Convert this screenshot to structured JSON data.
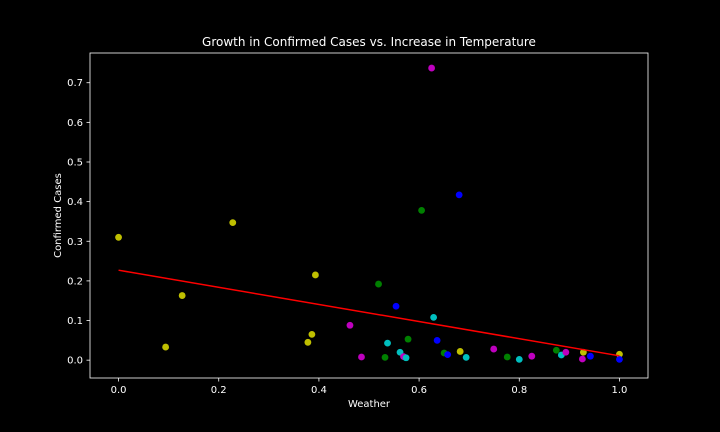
{
  "chart_data": {
    "type": "scatter",
    "title": "Growth in Confirmed Cases vs. Increase in Temperature",
    "xlabel": "Weather",
    "ylabel": "Confirmed Cases",
    "xlim": [
      -0.057,
      1.057
    ],
    "ylim": [
      -0.045,
      0.775
    ],
    "xticks": [
      0.0,
      0.2,
      0.4,
      0.6,
      0.8,
      1.0
    ],
    "xtick_labels": [
      "0.0",
      "0.2",
      "0.4",
      "0.6",
      "0.8",
      "1.0"
    ],
    "yticks": [
      0.0,
      0.1,
      0.2,
      0.3,
      0.4,
      0.5,
      0.6,
      0.7
    ],
    "ytick_labels": [
      "0.0",
      "0.1",
      "0.2",
      "0.3",
      "0.4",
      "0.5",
      "0.6",
      "0.7"
    ],
    "grid": false,
    "colors": {
      "background": "#000000",
      "foreground": "#ffffff",
      "fit_line": "#ff0000"
    },
    "points": [
      {
        "x": 0.0,
        "y": 0.31,
        "color": "#bfbf00"
      },
      {
        "x": 0.094,
        "y": 0.033,
        "color": "#bfbf00"
      },
      {
        "x": 0.127,
        "y": 0.163,
        "color": "#bfbf00"
      },
      {
        "x": 0.228,
        "y": 0.347,
        "color": "#bfbf00"
      },
      {
        "x": 0.378,
        "y": 0.045,
        "color": "#bfbf00"
      },
      {
        "x": 0.386,
        "y": 0.065,
        "color": "#bfbf00"
      },
      {
        "x": 0.393,
        "y": 0.215,
        "color": "#bfbf00"
      },
      {
        "x": 0.462,
        "y": 0.088,
        "color": "#bf00bf"
      },
      {
        "x": 0.485,
        "y": 0.008,
        "color": "#bf00bf"
      },
      {
        "x": 0.519,
        "y": 0.192,
        "color": "#008000"
      },
      {
        "x": 0.532,
        "y": 0.007,
        "color": "#008000"
      },
      {
        "x": 0.537,
        "y": 0.043,
        "color": "#00bfbf"
      },
      {
        "x": 0.554,
        "y": 0.136,
        "color": "#0000ff"
      },
      {
        "x": 0.562,
        "y": 0.02,
        "color": "#00bfbf"
      },
      {
        "x": 0.569,
        "y": 0.009,
        "color": "#bf00bf"
      },
      {
        "x": 0.574,
        "y": 0.006,
        "color": "#00bfbf"
      },
      {
        "x": 0.578,
        "y": 0.053,
        "color": "#008000"
      },
      {
        "x": 0.605,
        "y": 0.378,
        "color": "#008000"
      },
      {
        "x": 0.625,
        "y": 0.737,
        "color": "#bf00bf"
      },
      {
        "x": 0.629,
        "y": 0.108,
        "color": "#00bfbf"
      },
      {
        "x": 0.636,
        "y": 0.05,
        "color": "#0000ff"
      },
      {
        "x": 0.65,
        "y": 0.018,
        "color": "#008000"
      },
      {
        "x": 0.657,
        "y": 0.014,
        "color": "#0000ff"
      },
      {
        "x": 0.68,
        "y": 0.417,
        "color": "#0000ff"
      },
      {
        "x": 0.682,
        "y": 0.022,
        "color": "#bfbf00"
      },
      {
        "x": 0.694,
        "y": 0.007,
        "color": "#00bfbf"
      },
      {
        "x": 0.749,
        "y": 0.028,
        "color": "#bf00bf"
      },
      {
        "x": 0.776,
        "y": 0.008,
        "color": "#008000"
      },
      {
        "x": 0.8,
        "y": 0.002,
        "color": "#00bfbf"
      },
      {
        "x": 0.825,
        "y": 0.01,
        "color": "#bf00bf"
      },
      {
        "x": 0.874,
        "y": 0.025,
        "color": "#008000"
      },
      {
        "x": 0.884,
        "y": 0.013,
        "color": "#00bfbf"
      },
      {
        "x": 0.893,
        "y": 0.02,
        "color": "#bf00bf"
      },
      {
        "x": 0.926,
        "y": 0.003,
        "color": "#bf00bf"
      },
      {
        "x": 0.928,
        "y": 0.02,
        "color": "#bfbf00"
      },
      {
        "x": 0.942,
        "y": 0.01,
        "color": "#0000ff"
      },
      {
        "x": 1.0,
        "y": 0.015,
        "color": "#bfbf00"
      },
      {
        "x": 1.0,
        "y": 0.002,
        "color": "#0000ff"
      }
    ],
    "fit_line": {
      "x": [
        0.0,
        1.0
      ],
      "y": [
        0.227,
        0.011
      ]
    }
  }
}
